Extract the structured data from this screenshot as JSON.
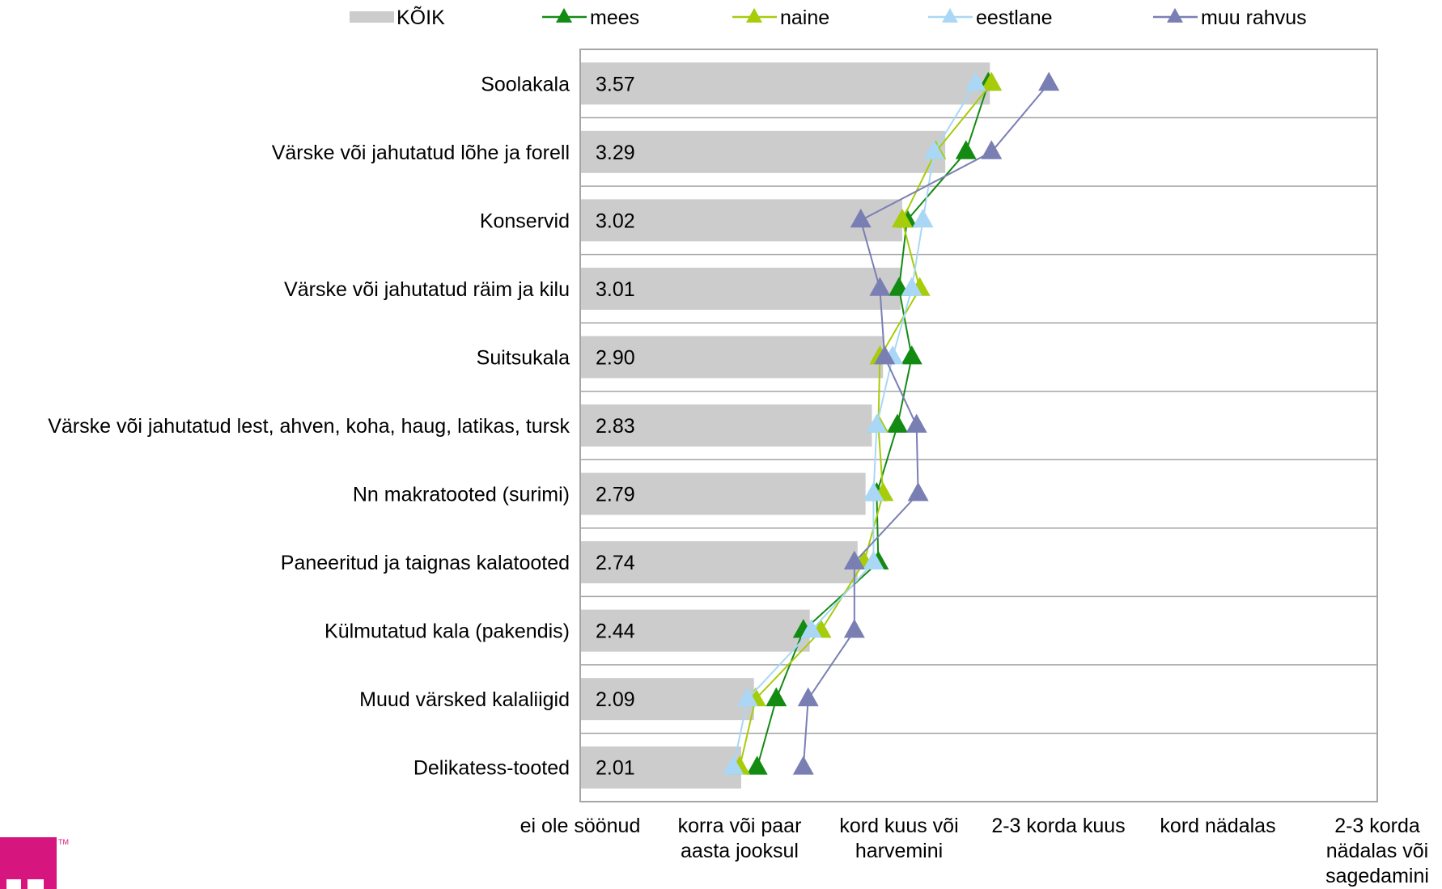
{
  "colors": {
    "bar": "#cccccc",
    "grid": "#a6a6a6",
    "frame": "#a6a6a6",
    "mees": "#138b13",
    "naine": "#a6cc0a",
    "eestlane": "#a9d7f5",
    "muu_rahvus": "#7a7fb3",
    "logo": "#d6157f"
  },
  "legend": [
    {
      "key": "koik",
      "label": "KÕIK",
      "kind": "bar"
    },
    {
      "key": "mees",
      "label": "mees",
      "kind": "line"
    },
    {
      "key": "naine",
      "label": "naine",
      "kind": "line"
    },
    {
      "key": "eestlane",
      "label": "eestlane",
      "kind": "line"
    },
    {
      "key": "muu_rahvus",
      "label": "muu rahvus",
      "kind": "line"
    }
  ],
  "chart_data": {
    "type": "bar",
    "orientation": "horizontal",
    "title": "",
    "xlabel": "",
    "ylabel": "",
    "xlim": [
      1,
      6
    ],
    "grid": "horizontal",
    "legend_position": "top",
    "x_ticks": [
      {
        "value": 1,
        "label": [
          "ei ole söönud"
        ]
      },
      {
        "value": 2,
        "label": [
          "korra või paar",
          "aasta jooksul"
        ]
      },
      {
        "value": 3,
        "label": [
          "kord kuus või",
          "harvemini"
        ]
      },
      {
        "value": 4,
        "label": [
          "2-3 korda kuus"
        ]
      },
      {
        "value": 5,
        "label": [
          "kord nädalas"
        ]
      },
      {
        "value": 6,
        "label": [
          "2-3 korda",
          "nädalas või",
          "sagedamini"
        ]
      }
    ],
    "categories": [
      "Soolakala",
      "Värske või jahutatud lõhe ja forell",
      "Konservid",
      "Värske või jahutatud räim ja kilu",
      "Suitsukala",
      "Värske või jahutatud lest, ahven, koha, haug, latikas, tursk",
      "Nn  makratooted (surimi)",
      "Paneeritud ja taignas kalatooted",
      "Külmutatud kala (pakendis)",
      "Muud värsked kalaliigid",
      "Delikatess-tooted"
    ],
    "bar_series": {
      "name": "KÕIK",
      "values": [
        3.57,
        3.29,
        3.02,
        3.01,
        2.9,
        2.83,
        2.79,
        2.74,
        2.44,
        2.09,
        2.01
      ],
      "labels": [
        "3.57",
        "3.29",
        "3.02",
        "3.01",
        "2.90",
        "2.83",
        "2.79",
        "2.74",
        "2.44",
        "2.09",
        "2.01"
      ]
    },
    "line_series": [
      {
        "key": "mees",
        "name": "mees",
        "values": [
          3.56,
          3.42,
          3.05,
          3.0,
          3.08,
          2.99,
          2.86,
          2.87,
          2.4,
          2.23,
          2.11
        ]
      },
      {
        "key": "naine",
        "name": "naine",
        "values": [
          3.58,
          3.23,
          3.02,
          3.13,
          2.88,
          2.87,
          2.9,
          2.78,
          2.51,
          2.1,
          2.0
        ]
      },
      {
        "key": "eestlane",
        "name": "eestlane",
        "values": [
          3.48,
          3.22,
          3.15,
          3.08,
          2.96,
          2.86,
          2.84,
          2.84,
          2.45,
          2.05,
          1.96
        ]
      },
      {
        "key": "muu_rahvus",
        "name": "muu rahvus",
        "values": [
          3.94,
          3.58,
          2.76,
          2.88,
          2.91,
          3.11,
          3.12,
          2.72,
          2.72,
          2.43,
          2.4
        ]
      }
    ]
  }
}
